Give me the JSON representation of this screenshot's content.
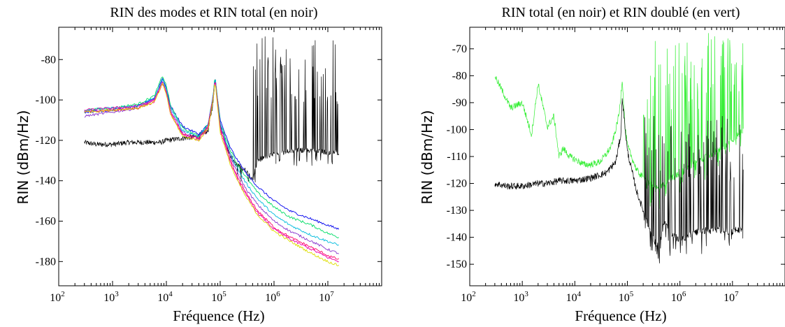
{
  "chart_data": [
    {
      "type": "line",
      "title": "RIN des modes et RIN total (en noir)",
      "xlabel": "Fréquence (Hz)",
      "ylabel": "RIN (dBm/Hz)",
      "x_scale": "log",
      "xlim": [
        100,
        100000000
      ],
      "ylim": [
        -192,
        -64
      ],
      "x_tick_labels": [
        {
          "base": "10",
          "exp": "2",
          "value": 100
        },
        {
          "base": "10",
          "exp": "3",
          "value": 1000
        },
        {
          "base": "10",
          "exp": "4",
          "value": 10000
        },
        {
          "base": "10",
          "exp": "5",
          "value": 100000
        },
        {
          "base": "10",
          "exp": "6",
          "value": 1000000
        },
        {
          "base": "10",
          "exp": "7",
          "value": 10000000
        }
      ],
      "y_ticks": [
        -80,
        -100,
        -120,
        -140,
        -160,
        -180
      ],
      "y_tick_labels": [
        "-80",
        "-100",
        "-120",
        "-140",
        "-160",
        "-180"
      ],
      "grid": false,
      "series": [
        {
          "color": "#000000",
          "role": "total",
          "noisy_spikes": true,
          "x": [
            300,
            500,
            1000,
            2000,
            5000,
            8000,
            10000,
            20000,
            40000,
            60000,
            75000,
            80000,
            90000,
            100000,
            150000,
            200000,
            300000,
            400000,
            500000,
            700000,
            1000000,
            2000000,
            5000000,
            10000000,
            16000000
          ],
          "y": [
            -121,
            -122,
            -122,
            -121,
            -121,
            -121,
            -120,
            -119,
            -118,
            -115,
            -100,
            -89,
            -100,
            -112,
            -127,
            -132,
            -135,
            -139,
            -130,
            -128,
            -127,
            -125,
            -125,
            -126,
            -126
          ],
          "spike_peak_y": -68
        },
        {
          "color": "#0000ee",
          "x": [
            300,
            1000,
            3000,
            6000,
            8500,
            10000,
            12000,
            20000,
            40000,
            60000,
            75000,
            80000,
            90000,
            100000,
            150000,
            200000,
            300000,
            500000,
            1000000,
            2000000,
            5000000,
            10000000,
            16000000
          ],
          "y": [
            -106,
            -105,
            -103,
            -99,
            -89,
            -94,
            -103,
            -113,
            -117,
            -112,
            -97,
            -88,
            -100,
            -110,
            -123,
            -129,
            -136,
            -143,
            -150,
            -155,
            -159,
            -162,
            -164
          ]
        },
        {
          "color": "#00dd66",
          "x": [
            300,
            1000,
            3000,
            6000,
            8500,
            10000,
            12000,
            20000,
            40000,
            60000,
            75000,
            80000,
            90000,
            100000,
            150000,
            200000,
            300000,
            500000,
            1000000,
            2000000,
            5000000,
            10000000,
            16000000
          ],
          "y": [
            -105,
            -104,
            -102,
            -98,
            -88,
            -93,
            -103,
            -114,
            -118,
            -112,
            -97,
            -88,
            -100,
            -111,
            -124,
            -131,
            -138,
            -146,
            -153,
            -158,
            -162,
            -166,
            -168
          ]
        },
        {
          "color": "#00bbdd",
          "x": [
            300,
            1000,
            3000,
            6000,
            8500,
            10000,
            12000,
            20000,
            40000,
            60000,
            75000,
            80000,
            90000,
            100000,
            150000,
            200000,
            300000,
            500000,
            1000000,
            2000000,
            5000000,
            10000000,
            16000000
          ],
          "y": [
            -105,
            -104,
            -103,
            -99,
            -90,
            -95,
            -104,
            -115,
            -118,
            -112,
            -97,
            -88,
            -101,
            -112,
            -126,
            -133,
            -141,
            -149,
            -157,
            -162,
            -167,
            -170,
            -172
          ]
        },
        {
          "color": "#8833cc",
          "x": [
            300,
            1000,
            3000,
            6000,
            8500,
            10000,
            12000,
            20000,
            40000,
            60000,
            75000,
            80000,
            90000,
            100000,
            150000,
            200000,
            300000,
            500000,
            1000000,
            2000000,
            5000000,
            10000000,
            16000000
          ],
          "y": [
            -108,
            -106,
            -104,
            -100,
            -91,
            -96,
            -105,
            -116,
            -119,
            -113,
            -98,
            -89,
            -102,
            -113,
            -127,
            -135,
            -144,
            -152,
            -160,
            -165,
            -170,
            -174,
            -176
          ]
        },
        {
          "color": "#ff0066",
          "x": [
            300,
            1000,
            3000,
            6000,
            8500,
            10000,
            12000,
            20000,
            40000,
            60000,
            75000,
            80000,
            90000,
            100000,
            150000,
            200000,
            300000,
            500000,
            1000000,
            2000000,
            5000000,
            10000000,
            16000000
          ],
          "y": [
            -106,
            -105,
            -104,
            -101,
            -92,
            -97,
            -107,
            -117,
            -119,
            -113,
            -98,
            -89,
            -102,
            -114,
            -129,
            -137,
            -146,
            -155,
            -163,
            -168,
            -173,
            -177,
            -179
          ]
        },
        {
          "color": "#ee00aa",
          "x": [
            300,
            1000,
            3000,
            6000,
            8500,
            10000,
            12000,
            20000,
            40000,
            60000,
            75000,
            80000,
            90000,
            100000,
            150000,
            200000,
            300000,
            500000,
            1000000,
            2000000,
            5000000,
            10000000,
            16000000
          ],
          "y": [
            -105,
            -104,
            -103,
            -100,
            -91,
            -96,
            -106,
            -117,
            -120,
            -114,
            -98,
            -89,
            -103,
            -115,
            -130,
            -138,
            -147,
            -156,
            -164,
            -169,
            -174,
            -178,
            -180
          ]
        },
        {
          "color": "#dddd00",
          "x": [
            300,
            1000,
            3000,
            6000,
            8500,
            10000,
            12000,
            20000,
            40000,
            60000,
            75000,
            80000,
            90000,
            100000,
            150000,
            200000,
            300000,
            500000,
            1000000,
            2000000,
            5000000,
            10000000,
            16000000
          ],
          "y": [
            -106,
            -105,
            -104,
            -101,
            -92,
            -97,
            -107,
            -118,
            -120,
            -114,
            -99,
            -90,
            -104,
            -116,
            -131,
            -139,
            -148,
            -157,
            -165,
            -170,
            -176,
            -180,
            -182
          ]
        }
      ]
    },
    {
      "type": "line",
      "title": "RIN total (en noir) et RIN doublé (en vert)",
      "xlabel": "Fréquence (Hz)",
      "ylabel": "RIN (dBm/Hz)",
      "x_scale": "log",
      "xlim": [
        100,
        100000000
      ],
      "ylim": [
        -158,
        -62
      ],
      "x_tick_labels": [
        {
          "base": "10",
          "exp": "2",
          "value": 100
        },
        {
          "base": "10",
          "exp": "3",
          "value": 1000
        },
        {
          "base": "10",
          "exp": "4",
          "value": 10000
        },
        {
          "base": "10",
          "exp": "5",
          "value": 100000
        },
        {
          "base": "10",
          "exp": "6",
          "value": 1000000
        },
        {
          "base": "10",
          "exp": "7",
          "value": 10000000
        }
      ],
      "y_ticks": [
        -70,
        -80,
        -90,
        -100,
        -110,
        -120,
        -130,
        -140,
        -150
      ],
      "y_tick_labels": [
        "-70",
        "-80",
        "-90",
        "-100",
        "-110",
        "-120",
        "-130",
        "-140",
        "-150"
      ],
      "grid": false,
      "series": [
        {
          "color": "#33ee33",
          "role": "doubled",
          "noisy_spikes": true,
          "x": [
            300,
            600,
            1000,
            1500,
            2000,
            3000,
            4000,
            5000,
            6000,
            8000,
            10000,
            15000,
            20000,
            30000,
            40000,
            50000,
            60000,
            70000,
            80000,
            90000,
            100000,
            150000,
            200000,
            300000,
            400000,
            500000,
            700000,
            1000000,
            2000000,
            5000000,
            10000000,
            16000000
          ],
          "y": [
            -80,
            -92,
            -90,
            -102,
            -83,
            -99,
            -95,
            -110,
            -107,
            -110,
            -111,
            -113,
            -113,
            -112,
            -109,
            -106,
            -100,
            -94,
            -81,
            -99,
            -106,
            -115,
            -118,
            -121,
            -122,
            -120,
            -118,
            -116,
            -112,
            -108,
            -104,
            -100
          ],
          "spike_peak_y": -64
        },
        {
          "color": "#000000",
          "role": "total",
          "noisy_spikes": true,
          "x": [
            300,
            500,
            1000,
            2000,
            3000,
            5000,
            8000,
            10000,
            20000,
            40000,
            60000,
            75000,
            80000,
            90000,
            100000,
            150000,
            200000,
            300000,
            400000,
            500000,
            700000,
            1000000,
            2000000,
            5000000,
            10000000,
            16000000
          ],
          "y": [
            -120,
            -121,
            -121,
            -120,
            -120,
            -119,
            -119,
            -119,
            -118,
            -116,
            -112,
            -102,
            -88,
            -99,
            -108,
            -123,
            -130,
            -140,
            -144,
            -134,
            -139,
            -141,
            -138,
            -137,
            -138,
            -136
          ],
          "spike_peak_y": -95
        }
      ]
    }
  ]
}
